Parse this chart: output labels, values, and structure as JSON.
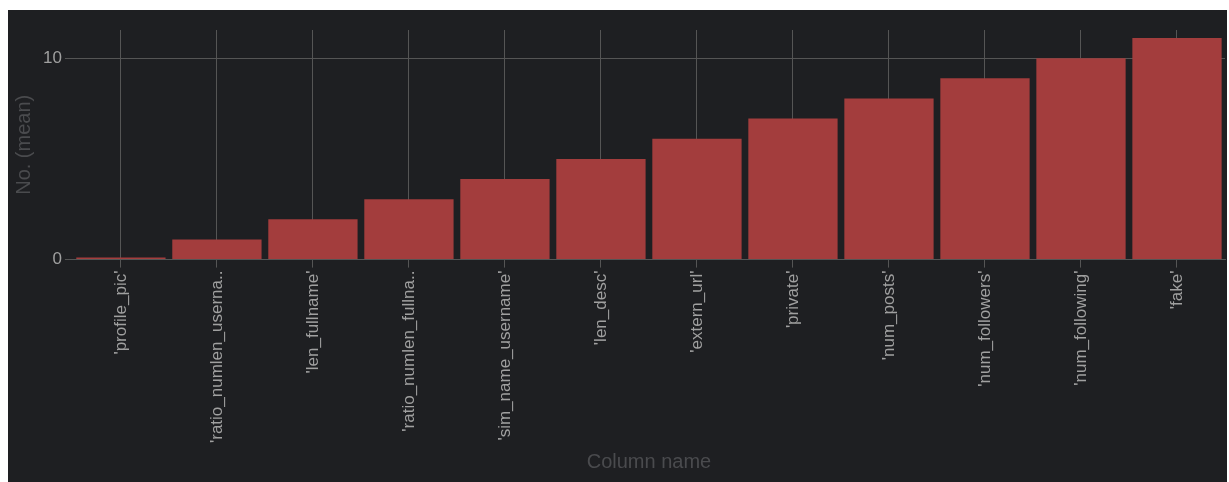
{
  "chart_data": {
    "type": "bar",
    "xlabel": "Column name",
    "ylabel": "No. (mean)",
    "categories": [
      "'profile_pic'",
      "'ratio_numlen_userna..",
      "'len_fullname'",
      "'ratio_numlen_fullna..",
      "'sim_name_username'",
      "'len_desc'",
      "'extern_url'",
      "'private'",
      "'num_posts'",
      "'num_followers'",
      "'num_following'",
      "'fake'"
    ],
    "values": [
      0.1,
      1,
      2,
      3,
      4,
      5,
      6,
      7,
      8,
      9,
      10,
      11
    ],
    "color": "#a33d3d",
    "ylim": [
      0,
      11.4
    ],
    "yticks": [
      0,
      10
    ],
    "grid": true
  }
}
